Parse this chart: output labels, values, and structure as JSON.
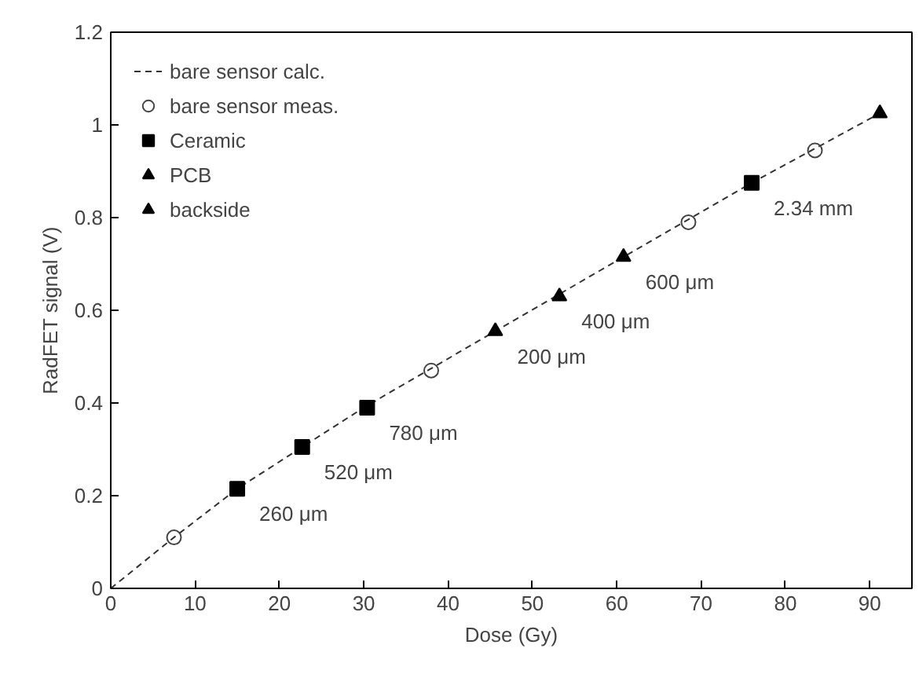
{
  "chart_data": {
    "type": "scatter",
    "xlabel": "Dose (Gy)",
    "ylabel": "RadFET signal (V)",
    "xlim": [
      0,
      95
    ],
    "ylim": [
      0,
      1.2
    ],
    "xticks": [
      0,
      10,
      20,
      30,
      40,
      50,
      60,
      70,
      80,
      90
    ],
    "yticks": [
      0,
      0.2,
      0.4,
      0.6,
      0.8,
      1,
      1.2
    ],
    "grid": false,
    "legend": "top left",
    "series": [
      {
        "name": "bare sensor calc.",
        "type": "line",
        "line_style": "dashed",
        "marker": "none",
        "color": "#333333",
        "x": [
          0,
          7.5,
          15,
          30,
          45.6,
          60.8,
          76,
          91.2
        ],
        "values": [
          0,
          0.11,
          0.215,
          0.39,
          0.555,
          0.715,
          0.875,
          1.025
        ]
      },
      {
        "name": "bare sensor meas.",
        "marker": "circle",
        "color": "#444444",
        "x": [
          7.5,
          38,
          68.5,
          83.5
        ],
        "values": [
          0.11,
          0.47,
          0.79,
          0.945
        ]
      },
      {
        "name": "Ceramic",
        "marker": "square",
        "color": "#000000",
        "x": [
          15,
          22.7,
          30.4,
          76
        ],
        "values": [
          0.215,
          0.305,
          0.39,
          0.875
        ]
      },
      {
        "name": "PCB",
        "marker": "triangle",
        "color": "#000000",
        "x": [
          45.6,
          53.2,
          60.8
        ],
        "values": [
          0.555,
          0.63,
          0.715
        ]
      },
      {
        "name": "backside",
        "marker": "triangle",
        "color": "#000000",
        "x": [
          91.2
        ],
        "values": [
          1.025
        ]
      }
    ],
    "annotations": [
      {
        "text": "260 μm",
        "x": 15,
        "y": 0.215
      },
      {
        "text": "520 μm",
        "x": 22.7,
        "y": 0.305
      },
      {
        "text": "780 μm",
        "x": 30.4,
        "y": 0.39
      },
      {
        "text": "200 μm",
        "x": 45.6,
        "y": 0.555
      },
      {
        "text": "400 μm",
        "x": 53.2,
        "y": 0.63
      },
      {
        "text": "600 μm",
        "x": 60.8,
        "y": 0.715
      },
      {
        "text": "2.34 mm",
        "x": 76,
        "y": 0.875
      }
    ]
  }
}
